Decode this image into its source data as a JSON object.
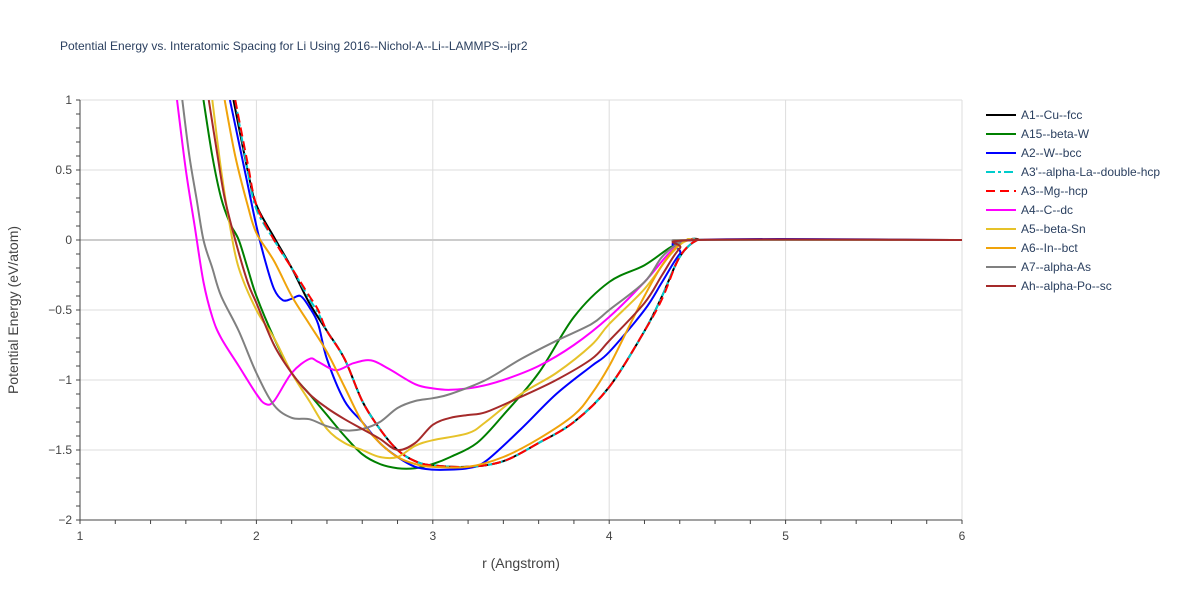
{
  "chart_data": {
    "type": "line",
    "title": "Potential Energy vs. Interatomic Spacing for Li Using 2016--Nichol-A--Li--LAMMPS--ipr2",
    "xlabel": "r (Angstrom)",
    "ylabel": "Potential Energy (eV/atom)",
    "xlim": [
      1,
      6
    ],
    "ylim": [
      -2,
      1
    ],
    "xticks": [
      1,
      2,
      3,
      4,
      5,
      6
    ],
    "yticks": [
      -2,
      -1.5,
      -1,
      -0.5,
      0,
      0.5,
      1
    ],
    "ytick_labels": [
      "−2",
      "−1.5",
      "−1",
      "−0.5",
      "0",
      "0.5",
      "1"
    ],
    "grid": true,
    "legend_position": "right",
    "series": [
      {
        "name": "A1--Cu--fcc",
        "color": "#000000",
        "dash": "solid",
        "points": [
          [
            1.87,
            1.0
          ],
          [
            1.95,
            0.5
          ],
          [
            2.0,
            0.25
          ],
          [
            2.1,
            0.02
          ],
          [
            2.2,
            -0.2
          ],
          [
            2.3,
            -0.45
          ],
          [
            2.4,
            -0.65
          ],
          [
            2.5,
            -0.85
          ],
          [
            2.6,
            -1.15
          ],
          [
            2.7,
            -1.35
          ],
          [
            2.8,
            -1.5
          ],
          [
            2.9,
            -1.58
          ],
          [
            3.0,
            -1.61
          ],
          [
            3.2,
            -1.62
          ],
          [
            3.4,
            -1.58
          ],
          [
            3.6,
            -1.45
          ],
          [
            3.8,
            -1.3
          ],
          [
            4.0,
            -1.05
          ],
          [
            4.2,
            -0.65
          ],
          [
            4.3,
            -0.4
          ],
          [
            4.4,
            -0.12
          ],
          [
            4.5,
            0.0
          ],
          [
            4.6,
            0.0
          ],
          [
            6.0,
            0.0
          ]
        ]
      },
      {
        "name": "A15--beta-W",
        "color": "#008000",
        "dash": "solid",
        "points": [
          [
            1.7,
            1.0
          ],
          [
            1.75,
            0.6
          ],
          [
            1.8,
            0.3
          ],
          [
            1.85,
            0.12
          ],
          [
            1.9,
            0.0
          ],
          [
            1.95,
            -0.2
          ],
          [
            2.0,
            -0.4
          ],
          [
            2.1,
            -0.7
          ],
          [
            2.2,
            -0.95
          ],
          [
            2.3,
            -1.1
          ],
          [
            2.4,
            -1.25
          ],
          [
            2.5,
            -1.4
          ],
          [
            2.6,
            -1.53
          ],
          [
            2.7,
            -1.6
          ],
          [
            2.8,
            -1.63
          ],
          [
            2.9,
            -1.63
          ],
          [
            3.0,
            -1.6
          ],
          [
            3.1,
            -1.55
          ],
          [
            3.25,
            -1.45
          ],
          [
            3.4,
            -1.25
          ],
          [
            3.6,
            -0.95
          ],
          [
            3.8,
            -0.55
          ],
          [
            4.0,
            -0.3
          ],
          [
            4.2,
            -0.18
          ],
          [
            4.35,
            -0.05
          ],
          [
            4.45,
            0.0
          ],
          [
            4.6,
            0.0
          ],
          [
            6.0,
            0.0
          ]
        ]
      },
      {
        "name": "A2--W--bcc",
        "color": "#0000ff",
        "dash": "solid",
        "points": [
          [
            1.85,
            1.0
          ],
          [
            1.9,
            0.7
          ],
          [
            1.95,
            0.4
          ],
          [
            2.0,
            0.1
          ],
          [
            2.05,
            -0.15
          ],
          [
            2.1,
            -0.35
          ],
          [
            2.15,
            -0.43
          ],
          [
            2.2,
            -0.42
          ],
          [
            2.25,
            -0.4
          ],
          [
            2.3,
            -0.48
          ],
          [
            2.35,
            -0.6
          ],
          [
            2.4,
            -0.85
          ],
          [
            2.5,
            -1.15
          ],
          [
            2.6,
            -1.3
          ],
          [
            2.7,
            -1.45
          ],
          [
            2.8,
            -1.55
          ],
          [
            2.9,
            -1.62
          ],
          [
            3.0,
            -1.64
          ],
          [
            3.1,
            -1.64
          ],
          [
            3.2,
            -1.63
          ],
          [
            3.3,
            -1.58
          ],
          [
            3.5,
            -1.35
          ],
          [
            3.7,
            -1.1
          ],
          [
            3.9,
            -0.9
          ],
          [
            4.0,
            -0.8
          ],
          [
            4.2,
            -0.5
          ],
          [
            4.3,
            -0.3
          ],
          [
            4.4,
            -0.1
          ],
          [
            4.5,
            0.0
          ],
          [
            6.0,
            0.0
          ]
        ]
      },
      {
        "name": "A3'--alpha-La--double-hcp",
        "color": "#00cccc",
        "dash": "dashdot",
        "points": [
          [
            1.88,
            1.0
          ],
          [
            1.95,
            0.5
          ],
          [
            2.0,
            0.22
          ],
          [
            2.1,
            0.0
          ],
          [
            2.2,
            -0.2
          ],
          [
            2.3,
            -0.42
          ],
          [
            2.35,
            -0.52
          ],
          [
            2.4,
            -0.65
          ],
          [
            2.5,
            -0.85
          ],
          [
            2.6,
            -1.15
          ],
          [
            2.7,
            -1.35
          ],
          [
            2.8,
            -1.5
          ],
          [
            2.9,
            -1.58
          ],
          [
            3.0,
            -1.61
          ],
          [
            3.2,
            -1.62
          ],
          [
            3.4,
            -1.58
          ],
          [
            3.6,
            -1.45
          ],
          [
            3.8,
            -1.3
          ],
          [
            4.0,
            -1.05
          ],
          [
            4.2,
            -0.65
          ],
          [
            4.3,
            -0.4
          ],
          [
            4.4,
            -0.12
          ],
          [
            4.5,
            0.0
          ],
          [
            4.6,
            0.0
          ],
          [
            6.0,
            0.0
          ]
        ]
      },
      {
        "name": "A3--Mg--hcp",
        "color": "#ff0000",
        "dash": "dash",
        "points": [
          [
            1.88,
            1.0
          ],
          [
            1.95,
            0.55
          ],
          [
            2.0,
            0.25
          ],
          [
            2.1,
            0.0
          ],
          [
            2.2,
            -0.2
          ],
          [
            2.3,
            -0.4
          ],
          [
            2.35,
            -0.5
          ],
          [
            2.4,
            -0.65
          ],
          [
            2.5,
            -0.85
          ],
          [
            2.6,
            -1.15
          ],
          [
            2.7,
            -1.35
          ],
          [
            2.8,
            -1.5
          ],
          [
            2.9,
            -1.58
          ],
          [
            3.0,
            -1.61
          ],
          [
            3.2,
            -1.62
          ],
          [
            3.4,
            -1.58
          ],
          [
            3.6,
            -1.45
          ],
          [
            3.8,
            -1.3
          ],
          [
            4.0,
            -1.05
          ],
          [
            4.2,
            -0.65
          ],
          [
            4.3,
            -0.42
          ],
          [
            4.4,
            -0.12
          ],
          [
            4.5,
            0.0
          ],
          [
            4.6,
            0.0
          ],
          [
            6.0,
            0.0
          ]
        ]
      },
      {
        "name": "A4--C--dc",
        "color": "#ff00ff",
        "dash": "solid",
        "points": [
          [
            1.55,
            1.0
          ],
          [
            1.6,
            0.5
          ],
          [
            1.65,
            0.1
          ],
          [
            1.7,
            -0.3
          ],
          [
            1.75,
            -0.55
          ],
          [
            1.8,
            -0.7
          ],
          [
            1.9,
            -0.9
          ],
          [
            2.0,
            -1.1
          ],
          [
            2.05,
            -1.17
          ],
          [
            2.1,
            -1.15
          ],
          [
            2.2,
            -0.95
          ],
          [
            2.3,
            -0.85
          ],
          [
            2.35,
            -0.87
          ],
          [
            2.45,
            -0.93
          ],
          [
            2.55,
            -0.88
          ],
          [
            2.65,
            -0.86
          ],
          [
            2.75,
            -0.92
          ],
          [
            2.9,
            -1.03
          ],
          [
            3.0,
            -1.06
          ],
          [
            3.1,
            -1.07
          ],
          [
            3.25,
            -1.05
          ],
          [
            3.4,
            -1.0
          ],
          [
            3.6,
            -0.9
          ],
          [
            3.8,
            -0.75
          ],
          [
            4.0,
            -0.55
          ],
          [
            4.2,
            -0.3
          ],
          [
            4.35,
            -0.08
          ],
          [
            4.45,
            0.0
          ],
          [
            4.6,
            0.0
          ],
          [
            6.0,
            0.0
          ]
        ]
      },
      {
        "name": "A5--beta-Sn",
        "color": "#e6c229",
        "dash": "solid",
        "points": [
          [
            1.75,
            1.0
          ],
          [
            1.8,
            0.5
          ],
          [
            1.85,
            0.1
          ],
          [
            1.9,
            -0.2
          ],
          [
            2.0,
            -0.5
          ],
          [
            2.1,
            -0.7
          ],
          [
            2.2,
            -0.95
          ],
          [
            2.3,
            -1.15
          ],
          [
            2.4,
            -1.35
          ],
          [
            2.5,
            -1.45
          ],
          [
            2.6,
            -1.5
          ],
          [
            2.7,
            -1.55
          ],
          [
            2.8,
            -1.55
          ],
          [
            2.9,
            -1.47
          ],
          [
            3.0,
            -1.43
          ],
          [
            3.2,
            -1.38
          ],
          [
            3.3,
            -1.3
          ],
          [
            3.5,
            -1.1
          ],
          [
            3.7,
            -0.95
          ],
          [
            3.9,
            -0.75
          ],
          [
            4.0,
            -0.6
          ],
          [
            4.2,
            -0.35
          ],
          [
            4.35,
            -0.1
          ],
          [
            4.45,
            0.0
          ],
          [
            4.6,
            0.0
          ],
          [
            6.0,
            0.0
          ]
        ]
      },
      {
        "name": "A6--In--bct",
        "color": "#f0a30a",
        "dash": "solid",
        "points": [
          [
            1.82,
            1.0
          ],
          [
            1.88,
            0.6
          ],
          [
            1.95,
            0.25
          ],
          [
            2.0,
            0.05
          ],
          [
            2.1,
            -0.15
          ],
          [
            2.2,
            -0.4
          ],
          [
            2.3,
            -0.6
          ],
          [
            2.4,
            -0.8
          ],
          [
            2.5,
            -1.05
          ],
          [
            2.6,
            -1.3
          ],
          [
            2.7,
            -1.45
          ],
          [
            2.8,
            -1.55
          ],
          [
            2.9,
            -1.6
          ],
          [
            3.0,
            -1.62
          ],
          [
            3.2,
            -1.62
          ],
          [
            3.4,
            -1.55
          ],
          [
            3.6,
            -1.42
          ],
          [
            3.8,
            -1.25
          ],
          [
            3.9,
            -1.1
          ],
          [
            4.0,
            -0.9
          ],
          [
            4.1,
            -0.65
          ],
          [
            4.2,
            -0.4
          ],
          [
            4.3,
            -0.18
          ],
          [
            4.4,
            -0.03
          ],
          [
            4.5,
            0.0
          ],
          [
            6.0,
            0.0
          ]
        ]
      },
      {
        "name": "A7--alpha-As",
        "color": "#808080",
        "dash": "solid",
        "points": [
          [
            1.58,
            1.0
          ],
          [
            1.62,
            0.6
          ],
          [
            1.66,
            0.3
          ],
          [
            1.7,
            0.0
          ],
          [
            1.75,
            -0.2
          ],
          [
            1.8,
            -0.4
          ],
          [
            1.9,
            -0.65
          ],
          [
            2.0,
            -0.95
          ],
          [
            2.1,
            -1.18
          ],
          [
            2.2,
            -1.27
          ],
          [
            2.3,
            -1.28
          ],
          [
            2.4,
            -1.33
          ],
          [
            2.5,
            -1.36
          ],
          [
            2.6,
            -1.35
          ],
          [
            2.7,
            -1.3
          ],
          [
            2.8,
            -1.2
          ],
          [
            2.9,
            -1.15
          ],
          [
            3.0,
            -1.13
          ],
          [
            3.1,
            -1.1
          ],
          [
            3.3,
            -1.0
          ],
          [
            3.5,
            -0.85
          ],
          [
            3.7,
            -0.72
          ],
          [
            3.9,
            -0.6
          ],
          [
            4.0,
            -0.5
          ],
          [
            4.2,
            -0.3
          ],
          [
            4.3,
            -0.12
          ],
          [
            4.4,
            -0.02
          ],
          [
            4.5,
            0.0
          ],
          [
            6.0,
            0.0
          ]
        ]
      },
      {
        "name": "Ah--alpha-Po--sc",
        "color": "#a52a2a",
        "dash": "solid",
        "points": [
          [
            1.73,
            1.0
          ],
          [
            1.78,
            0.6
          ],
          [
            1.82,
            0.3
          ],
          [
            1.88,
            0.0
          ],
          [
            1.95,
            -0.3
          ],
          [
            2.0,
            -0.45
          ],
          [
            2.1,
            -0.75
          ],
          [
            2.2,
            -0.95
          ],
          [
            2.3,
            -1.1
          ],
          [
            2.4,
            -1.2
          ],
          [
            2.5,
            -1.28
          ],
          [
            2.6,
            -1.35
          ],
          [
            2.7,
            -1.42
          ],
          [
            2.8,
            -1.5
          ],
          [
            2.9,
            -1.45
          ],
          [
            3.0,
            -1.32
          ],
          [
            3.1,
            -1.27
          ],
          [
            3.2,
            -1.25
          ],
          [
            3.3,
            -1.23
          ],
          [
            3.5,
            -1.12
          ],
          [
            3.7,
            -1.0
          ],
          [
            3.9,
            -0.85
          ],
          [
            4.0,
            -0.72
          ],
          [
            4.2,
            -0.45
          ],
          [
            4.3,
            -0.25
          ],
          [
            4.4,
            -0.06
          ],
          [
            4.5,
            0.0
          ],
          [
            6.0,
            0.0
          ]
        ]
      }
    ]
  }
}
